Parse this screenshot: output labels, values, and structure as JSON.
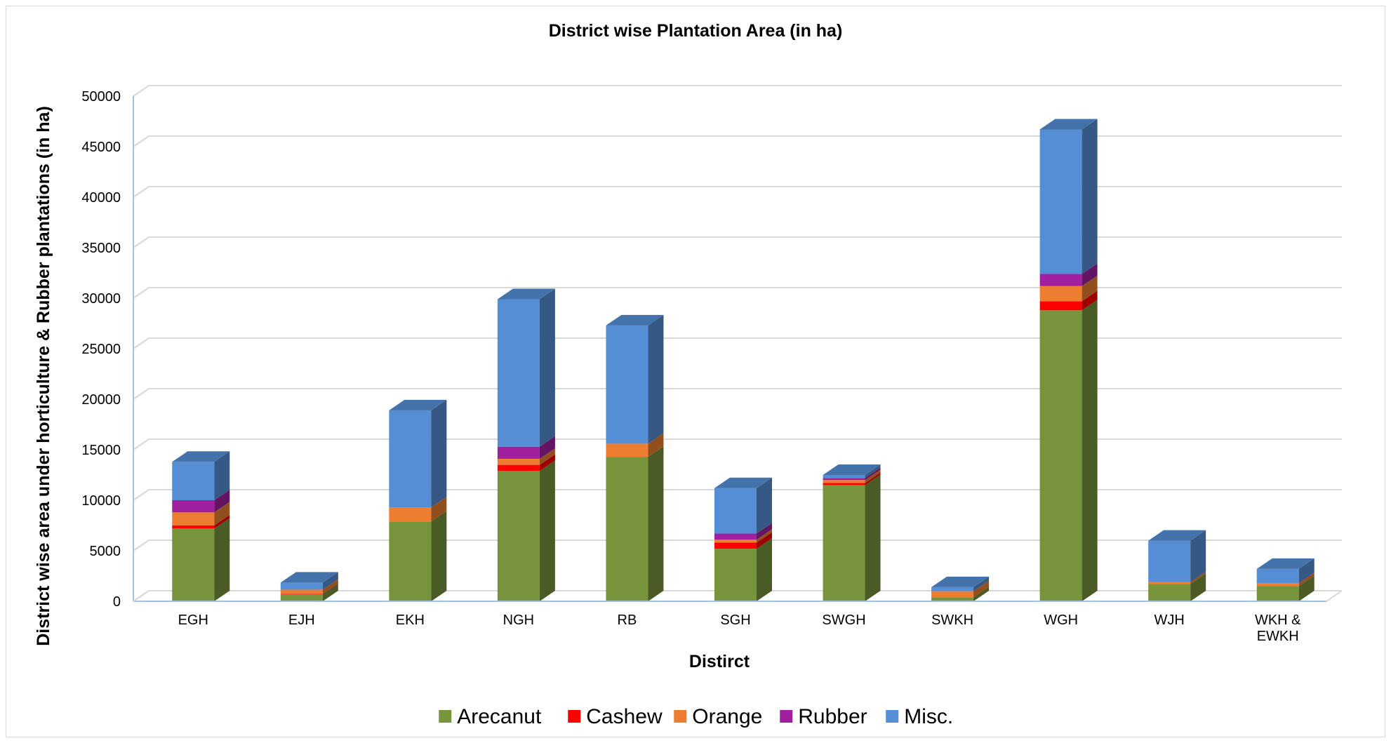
{
  "chart_data": {
    "type": "bar",
    "stacked": true,
    "three_d": true,
    "title": "District wise Plantation Area (in ha)",
    "xlabel": "Distirct",
    "ylabel": "District wise area under horticulture & Rubber plantations (in ha)",
    "ylim": [
      0,
      50000
    ],
    "yticks": [
      "0",
      "5000",
      "10000",
      "15000",
      "20000",
      "25000",
      "30000",
      "35000",
      "40000",
      "45000",
      "50000"
    ],
    "grid": true,
    "legend_position": "bottom",
    "categories": [
      "EGH",
      "EJH",
      "EKH",
      "NGH",
      "RB",
      "SGH",
      "SWGH",
      "SWKH",
      "WGH",
      "WJH",
      "WKH & EWKH"
    ],
    "series": [
      {
        "name": "Arecanut",
        "color": "#77933C",
        "values": [
          7200,
          700,
          7900,
          12900,
          14300,
          5200,
          11500,
          400,
          28800,
          1700,
          1500
        ]
      },
      {
        "name": "Cashew",
        "color": "#FF0000",
        "values": [
          300,
          50,
          0,
          600,
          0,
          600,
          200,
          0,
          900,
          0,
          0
        ]
      },
      {
        "name": "Orange",
        "color": "#ED7D31",
        "values": [
          1300,
          400,
          1400,
          600,
          1300,
          300,
          300,
          600,
          1500,
          200,
          300
        ]
      },
      {
        "name": "Rubber",
        "color": "#A020A0",
        "values": [
          1200,
          0,
          0,
          1200,
          0,
          600,
          200,
          0,
          1200,
          0,
          0
        ]
      },
      {
        "name": "Misc.",
        "color": "#558ED5",
        "values": [
          3800,
          700,
          9600,
          14600,
          11700,
          4500,
          300,
          400,
          14300,
          4100,
          1400
        ]
      }
    ]
  }
}
